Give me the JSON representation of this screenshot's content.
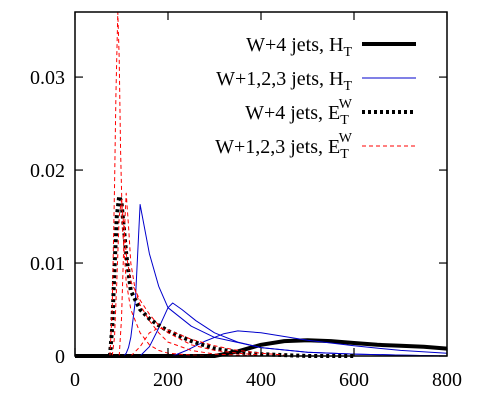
{
  "chart_data": {
    "type": "line",
    "title": "",
    "xlabel": "",
    "ylabel": "",
    "xlim": [
      0,
      800
    ],
    "ylim": [
      0,
      0.037
    ],
    "grid": false,
    "legend_position": "top-right",
    "x_ticks": [
      {
        "value": 0,
        "label": "0"
      },
      {
        "value": 200,
        "label": "200"
      },
      {
        "value": 400,
        "label": "400"
      },
      {
        "value": 600,
        "label": "600"
      },
      {
        "value": 800,
        "label": "800"
      }
    ],
    "y_ticks": [
      {
        "value": 0,
        "label": "0"
      },
      {
        "value": 0.01,
        "label": "0.01"
      },
      {
        "value": 0.02,
        "label": "0.02"
      },
      {
        "value": 0.03,
        "label": "0.03"
      }
    ],
    "series": [
      {
        "name": "W+4 jets, H",
        "name_sub": "T",
        "name_sup": "",
        "color": "#000000",
        "dash": "",
        "width": 4,
        "lines": [
          {
            "x": [
              0,
              300,
              350,
              400,
              450,
              500,
              550,
              600,
              650,
              700,
              750,
              800
            ],
            "y": [
              0,
              0.0,
              0.0005,
              0.0012,
              0.0016,
              0.0017,
              0.0016,
              0.0014,
              0.0012,
              0.0011,
              0.001,
              0.0008
            ]
          }
        ]
      },
      {
        "name": "W+1,2,3 jets, H",
        "name_sub": "T",
        "name_sup": "",
        "color": "#0000cc",
        "dash": "",
        "width": 1,
        "lines": [
          {
            "x": [
              105,
              110,
              115,
              120,
              130,
              140,
              160,
              180,
              200,
              250,
              300,
              400,
              500,
              600,
              700,
              800
            ],
            "y": [
              0,
              0.0003,
              0.0009,
              0.002,
              0.006,
              0.0163,
              0.011,
              0.0075,
              0.0052,
              0.0032,
              0.002,
              0.0009,
              0.0004,
              0.0002,
              0.0001,
              0.0
            ]
          },
          {
            "x": [
              140,
              160,
              180,
              200,
              210,
              230,
              260,
              300,
              350,
              400,
              500,
              600,
              700,
              800
            ],
            "y": [
              0,
              0.001,
              0.003,
              0.0052,
              0.0057,
              0.005,
              0.0038,
              0.0025,
              0.0015,
              0.0009,
              0.0004,
              0.0002,
              0.0001,
              0.0
            ]
          },
          {
            "x": [
              210,
              240,
              280,
              320,
              350,
              400,
              450,
              500,
              600,
              700,
              800
            ],
            "y": [
              0,
              0.0006,
              0.0016,
              0.0024,
              0.0027,
              0.0025,
              0.0021,
              0.0017,
              0.0011,
              0.0006,
              0.0003
            ]
          }
        ]
      },
      {
        "name": "W+4 jets, E",
        "name_sub": "T",
        "name_sup": "W",
        "color": "#000000",
        "dash": "3,3",
        "width": 4,
        "lines": [
          {
            "x": [
              75,
              80,
              85,
              90,
              95,
              100,
              110,
              120,
              140,
              160,
              180,
              200,
              250,
              300,
              350,
              400,
              450,
              500,
              600
            ],
            "y": [
              0,
              0.003,
              0.0095,
              0.015,
              0.0172,
              0.0165,
              0.011,
              0.007,
              0.005,
              0.004,
              0.0033,
              0.0027,
              0.0016,
              0.0008,
              0.0004,
              0.0002,
              0.0001,
              0.0,
              0.0
            ]
          }
        ]
      },
      {
        "name": "W+1,2,3 jets, E",
        "name_sub": "T",
        "name_sup": "W",
        "color": "#ff0000",
        "dash": "4,3",
        "width": 1,
        "lines": [
          {
            "x": [
              75,
              80,
              85,
              88,
              92,
              95,
              98,
              102,
              110,
              120,
              140,
              160,
              180,
              200,
              250,
              300,
              350,
              400
            ],
            "y": [
              0,
              0.005,
              0.018,
              0.028,
              0.037,
              0.032,
              0.022,
              0.014,
              0.008,
              0.005,
              0.0025,
              0.0012,
              0.0006,
              0.0003,
              0.0001,
              0.0,
              0.0,
              0.0
            ]
          },
          {
            "x": [
              80,
              85,
              90,
              95,
              100,
              105,
              110,
              120,
              140,
              160,
              180,
              200,
              250,
              300,
              350,
              400
            ],
            "y": [
              0,
              0.002,
              0.008,
              0.015,
              0.0168,
              0.014,
              0.011,
              0.008,
              0.006,
              0.0045,
              0.0033,
              0.0025,
              0.0012,
              0.0006,
              0.0003,
              0.0001
            ]
          },
          {
            "x": [
              95,
              100,
              105,
              110,
              115,
              120,
              130,
              140,
              160,
              180,
              200,
              250,
              300,
              350,
              400
            ],
            "y": [
              0,
              0.004,
              0.012,
              0.0175,
              0.014,
              0.01,
              0.007,
              0.0055,
              0.0038,
              0.0025,
              0.0015,
              0.0006,
              0.0002,
              0.0001,
              0.0
            ]
          },
          {
            "x": [
              120,
              140,
              160,
              180,
              200,
              220,
              250,
              300,
              350,
              400,
              450
            ],
            "y": [
              0,
              0.001,
              0.0025,
              0.003,
              0.0028,
              0.0024,
              0.0018,
              0.0011,
              0.0006,
              0.0003,
              0.0001
            ]
          }
        ]
      }
    ]
  }
}
